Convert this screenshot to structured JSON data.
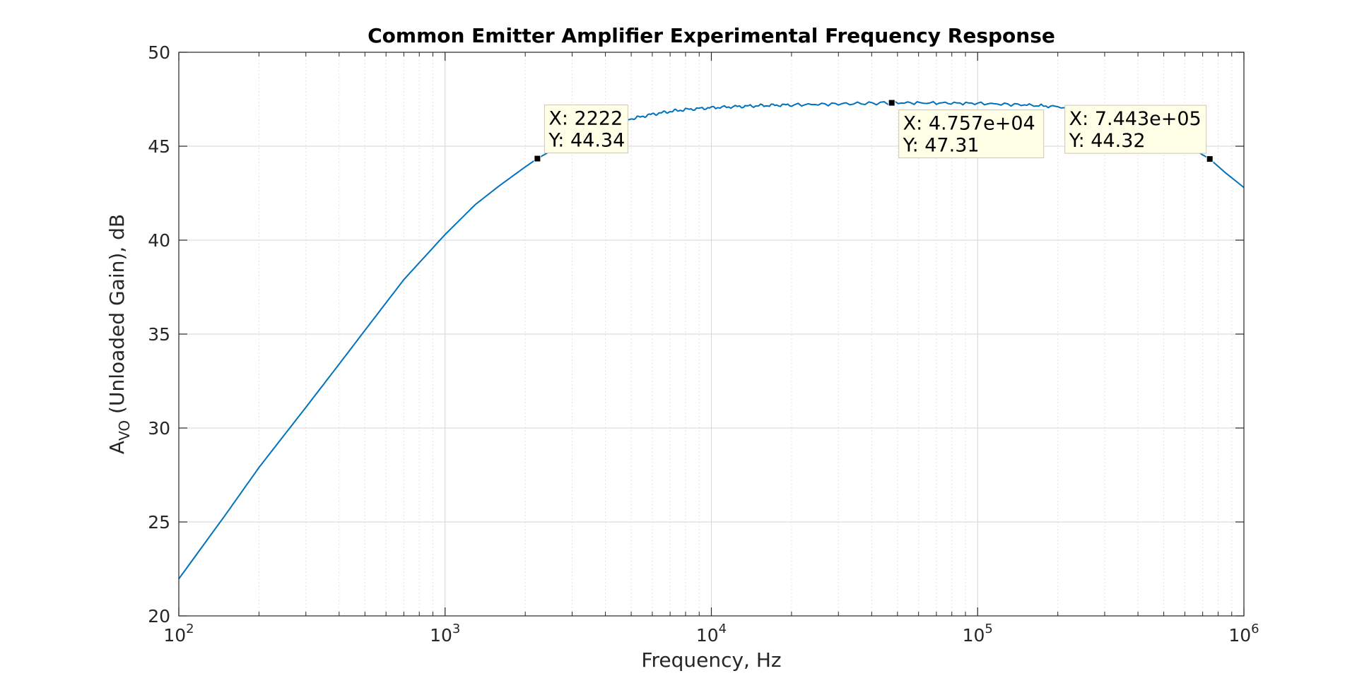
{
  "chart_data": {
    "type": "line",
    "title": "Common Emitter Amplifier Experimental Frequency Response",
    "xlabel": "Frequency, Hz",
    "ylabel": {
      "main": "A",
      "subscript": "VO",
      "rest": " (Unloaded Gain), dB"
    },
    "x_scale": "log",
    "xlim": [
      100,
      1000000
    ],
    "ylim": [
      20,
      50
    ],
    "x_ticks": [
      {
        "base": "10",
        "exp": "2",
        "value": 100
      },
      {
        "base": "10",
        "exp": "3",
        "value": 1000
      },
      {
        "base": "10",
        "exp": "4",
        "value": 10000
      },
      {
        "base": "10",
        "exp": "5",
        "value": 100000
      },
      {
        "base": "10",
        "exp": "6",
        "value": 1000000
      }
    ],
    "y_ticks": [
      "20",
      "25",
      "30",
      "35",
      "40",
      "45",
      "50"
    ],
    "grid": true,
    "series": [
      {
        "color": "#0072BD",
        "x": [
          100,
          150,
          200,
          300,
          400,
          500,
          700,
          1000,
          1300,
          1600,
          2000,
          2222,
          2600,
          3000,
          3500,
          4000,
          5000,
          6000,
          7000,
          8000,
          10000,
          13000,
          16000,
          20000,
          30000,
          47570,
          70000,
          100000,
          150000,
          200000,
          300000,
          400000,
          500000,
          600000,
          744300,
          850000,
          1000000
        ],
        "y": [
          21.97,
          25.4,
          27.9,
          31.1,
          33.4,
          35.2,
          37.9,
          40.3,
          41.9,
          42.9,
          43.9,
          44.34,
          44.9,
          45.35,
          45.75,
          46.05,
          46.45,
          46.7,
          46.85,
          46.95,
          47.05,
          47.12,
          47.17,
          47.2,
          47.25,
          47.31,
          47.3,
          47.28,
          47.2,
          47.1,
          46.7,
          46.2,
          45.6,
          45.1,
          44.32,
          43.6,
          42.8
        ]
      }
    ],
    "datatips": [
      {
        "x_label": "X: 2222",
        "y_label": "Y: 44.34",
        "x": 2222,
        "y": 44.34
      },
      {
        "x_label": "X: 4.757e+04",
        "y_label": "Y: 47.31",
        "x": 47570,
        "y": 47.31
      },
      {
        "x_label": "X: 7.443e+05",
        "y_label": "Y: 44.32",
        "x": 744300,
        "y": 44.32
      }
    ]
  }
}
